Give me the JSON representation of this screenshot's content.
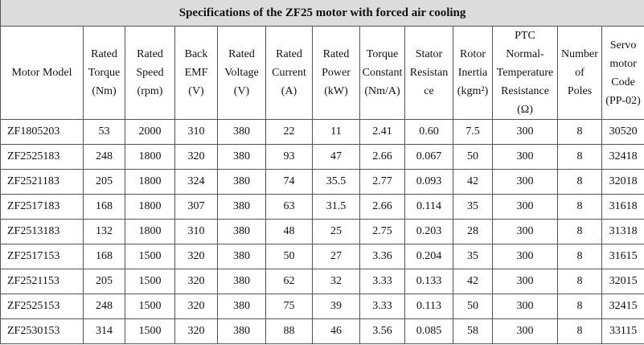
{
  "table": {
    "title": "Specifications of the ZF25 motor with forced air cooling",
    "headers": [
      [
        "Motor Model"
      ],
      [
        "Rated",
        "Torque",
        "(Nm)"
      ],
      [
        "Rated",
        "Speed",
        "(rpm)"
      ],
      [
        "Back",
        "EMF",
        "(V)"
      ],
      [
        "Rated",
        "Voltage",
        "(V)"
      ],
      [
        "Rated",
        "Current",
        "(A)"
      ],
      [
        "Rated",
        "Power",
        "(kW)"
      ],
      [
        "Torque",
        "Constant",
        "(Nm/A)"
      ],
      [
        "Stator",
        "Resistan",
        "ce"
      ],
      [
        "Rotor",
        "Inertia",
        "(kgm²)"
      ],
      [
        "PTC",
        "Normal-",
        "Temperature",
        "Resistance",
        "(Ω)"
      ],
      [
        "Number",
        "of",
        "Poles"
      ],
      [
        "Servo",
        "motor",
        "Code",
        "(PP-02)"
      ]
    ],
    "rows": [
      [
        "ZF1805203",
        "53",
        "2000",
        "310",
        "380",
        "22",
        "11",
        "2.41",
        "0.60",
        "7.5",
        "300",
        "8",
        "30520"
      ],
      [
        "ZF2525183",
        "248",
        "1800",
        "320",
        "380",
        "93",
        "47",
        "2.66",
        "0.067",
        "50",
        "300",
        "8",
        "32418"
      ],
      [
        "ZF2521183",
        "205",
        "1800",
        "324",
        "380",
        "74",
        "35.5",
        "2.77",
        "0.093",
        "42",
        "300",
        "8",
        "32018"
      ],
      [
        "ZF2517183",
        "168",
        "1800",
        "307",
        "380",
        "63",
        "31.5",
        "2.66",
        "0.114",
        "35",
        "300",
        "8",
        "31618"
      ],
      [
        "ZF2513183",
        "132",
        "1800",
        "310",
        "380",
        "48",
        "25",
        "2.75",
        "0.203",
        "28",
        "300",
        "8",
        "31318"
      ],
      [
        "ZF2517153",
        "168",
        "1500",
        "320",
        "380",
        "50",
        "27",
        "3.36",
        "0.204",
        "35",
        "300",
        "8",
        "31615"
      ],
      [
        "ZF2521153",
        "205",
        "1500",
        "320",
        "380",
        "62",
        "32",
        "3.33",
        "0.133",
        "42",
        "300",
        "8",
        "32015"
      ],
      [
        "ZF2525153",
        "248",
        "1500",
        "320",
        "380",
        "75",
        "39",
        "3.33",
        "0.113",
        "50",
        "300",
        "8",
        "32415"
      ],
      [
        "ZF2530153",
        "314",
        "1500",
        "320",
        "380",
        "88",
        "46",
        "3.56",
        "0.085",
        "58",
        "300",
        "8",
        "33115"
      ]
    ]
  }
}
